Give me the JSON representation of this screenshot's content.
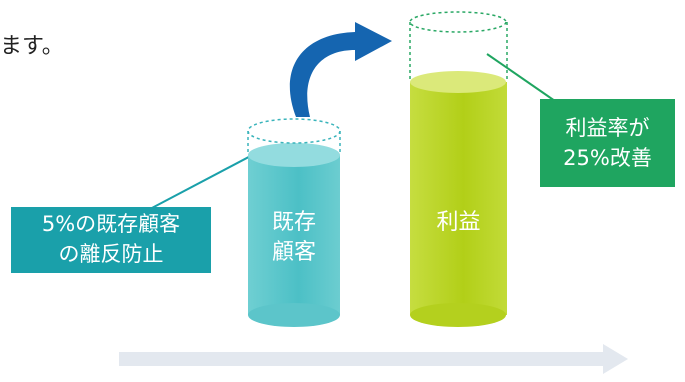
{
  "intro_text_fragment": "ます。",
  "columns": {
    "existing_customers": {
      "label_line1": "既存",
      "label_line2": "顧客"
    },
    "profit": {
      "label": "利益"
    }
  },
  "callouts": {
    "retention": {
      "line1": "5%の既存顧客",
      "line2": "の離反防止"
    },
    "profit_rate": {
      "line1": "利益率が",
      "line2": "25%改善"
    }
  },
  "colors": {
    "teal_column": "#4cc0c6",
    "lime_column": "#b5d21c",
    "teal_callout": "#1aa0aa",
    "green_callout": "#1fa560",
    "arrow_blue": "#1565b0",
    "timeline_arrow": "#e3e8ef"
  }
}
